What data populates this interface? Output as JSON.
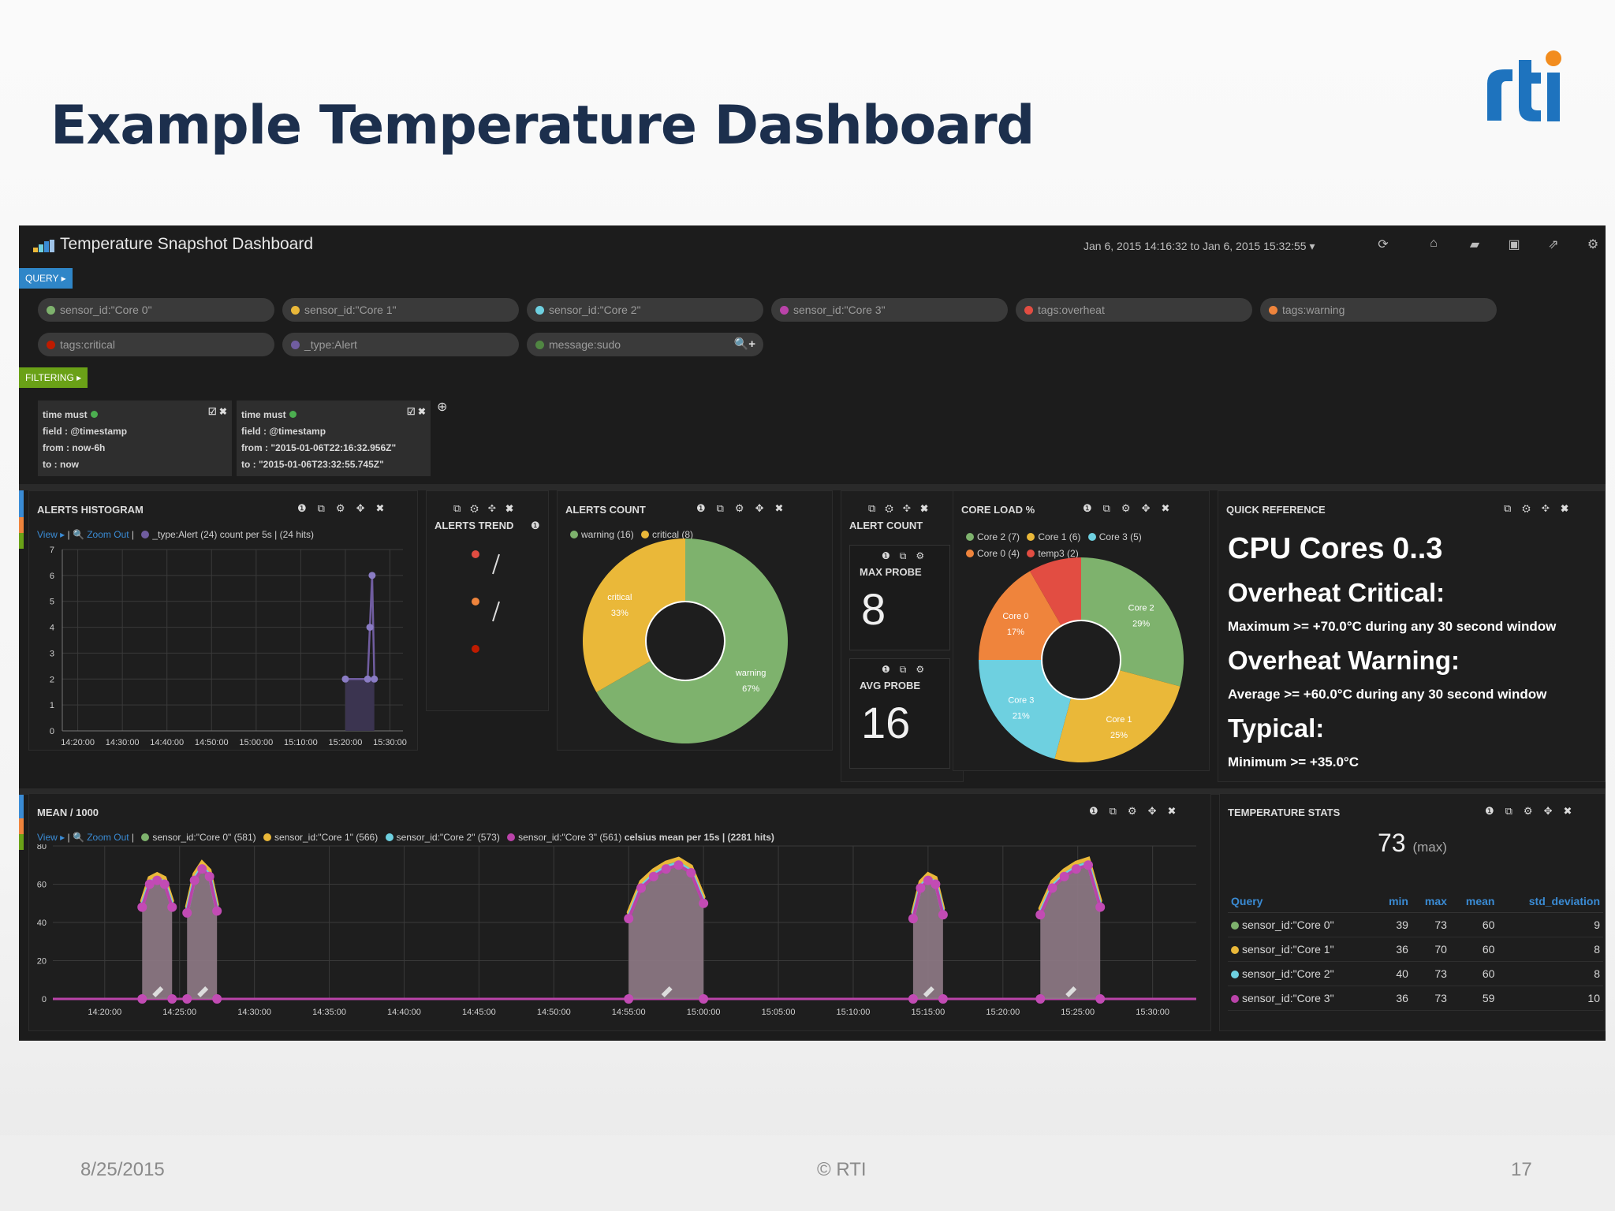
{
  "slide": {
    "title": "Example Temperature Dashboard",
    "footer_date": "8/25/2015",
    "footer_copyright": "© RTI",
    "footer_page": "17",
    "logo_text": "rti"
  },
  "dashboard": {
    "title": "Temperature Snapshot Dashboard",
    "time_range": "Jan 6, 2015 14:16:32 to Jan 6, 2015 15:32:55 ▾",
    "toolbar_icons": [
      "refresh-icon",
      "home-icon",
      "folder-icon",
      "save-icon",
      "share-icon",
      "gear-icon"
    ],
    "query_label": "QUERY ▸",
    "filtering_label": "FILTERING ▸",
    "queries": [
      {
        "label": "sensor_id:\"Core 0\"",
        "color": "#7eb26d"
      },
      {
        "label": "sensor_id:\"Core 1\"",
        "color": "#eab839"
      },
      {
        "label": "sensor_id:\"Core 2\"",
        "color": "#6ed0e0"
      },
      {
        "label": "sensor_id:\"Core 3\"",
        "color": "#ba43a9"
      },
      {
        "label": "tags:overheat",
        "color": "#e24d42"
      },
      {
        "label": "tags:warning",
        "color": "#ef843c"
      },
      {
        "label": "tags:critical",
        "color": "#bf1b00"
      },
      {
        "label": "_type:Alert",
        "color": "#705da0"
      },
      {
        "label": "message:sudo",
        "color": "#508642"
      }
    ],
    "query_add": "🔍+",
    "filters": [
      {
        "line1": "time must",
        "line2": "field : @timestamp",
        "line3": "from : now-6h",
        "line4": "to : now"
      },
      {
        "line1": "time must",
        "line2": "field : @timestamp",
        "line3": "from : \"2015-01-06T22:16:32.956Z\"",
        "line4": "to : \"2015-01-06T23:32:55.745Z\""
      }
    ]
  },
  "alerts_histogram": {
    "title": "ALERTS HISTOGRAM",
    "view": "View ▸",
    "zoom_out": "🔍 Zoom Out",
    "legend_series": "_type:Alert (24)",
    "legend_note": "count per 5s | (24 hits)"
  },
  "alerts_trend": {
    "title": "ALERTS TREND"
  },
  "alerts_count": {
    "title": "ALERTS COUNT",
    "legend": [
      {
        "label": "warning (16)",
        "color": "#7eb26d"
      },
      {
        "label": "critical (8)",
        "color": "#eab839"
      }
    ]
  },
  "alert_count": {
    "title": "ALERT COUNT",
    "max_label": "MAX PROBE",
    "max_value": "8",
    "avg_label": "AVG PROBE",
    "avg_value": "16"
  },
  "core_load": {
    "title": "CORE LOAD %",
    "legend": [
      {
        "label": "Core 2 (7)",
        "color": "#7eb26d"
      },
      {
        "label": "Core 1 (6)",
        "color": "#eab839"
      },
      {
        "label": "Core 3 (5)",
        "color": "#6ed0e0"
      },
      {
        "label": "Core 0 (4)",
        "color": "#ef843c"
      },
      {
        "label": "temp3 (2)",
        "color": "#e24d42"
      }
    ]
  },
  "quick_reference": {
    "title": "QUICK REFERENCE",
    "h1": "CPU Cores 0..3",
    "critical_heading": "Overheat Critical:",
    "critical_text": "Maximum >= +70.0°C during any 30 second window",
    "warning_heading": "Overheat Warning:",
    "warning_text": "Average >= +60.0°C during any 30 second window",
    "typical_heading": "Typical:",
    "typical_text": "Minimum >= +35.0°C"
  },
  "mean_panel": {
    "title": "MEAN / 1000",
    "view": "View ▸",
    "zoom_out": "🔍 Zoom Out",
    "legend": [
      {
        "label": "sensor_id:\"Core 0\" (581)",
        "color": "#7eb26d"
      },
      {
        "label": "sensor_id:\"Core 1\" (566)",
        "color": "#eab839"
      },
      {
        "label": "sensor_id:\"Core 2\" (573)",
        "color": "#6ed0e0"
      },
      {
        "label": "sensor_id:\"Core 3\" (561)",
        "color": "#ba43a9"
      }
    ],
    "legend_note": "celsius mean per 15s | (2281 hits)"
  },
  "temperature_stats": {
    "title": "TEMPERATURE STATS",
    "big_value": "73",
    "big_unit": "(max)",
    "columns": [
      "Query",
      "min",
      "max",
      "mean",
      "std_deviation"
    ],
    "rows": [
      {
        "query": "sensor_id:\"Core 0\"",
        "color": "#7eb26d",
        "min": "39",
        "max": "73",
        "mean": "60",
        "std": "9"
      },
      {
        "query": "sensor_id:\"Core 1\"",
        "color": "#eab839",
        "min": "36",
        "max": "70",
        "mean": "60",
        "std": "8"
      },
      {
        "query": "sensor_id:\"Core 2\"",
        "color": "#6ed0e0",
        "min": "40",
        "max": "73",
        "mean": "60",
        "std": "8"
      },
      {
        "query": "sensor_id:\"Core 3\"",
        "color": "#ba43a9",
        "min": "36",
        "max": "73",
        "mean": "59",
        "std": "10"
      }
    ]
  },
  "chart_data": [
    {
      "type": "line",
      "title": "ALERTS HISTOGRAM",
      "x": [
        "14:20:00",
        "14:30:00",
        "14:40:00",
        "14:50:00",
        "15:00:00",
        "15:10:00",
        "15:20:00",
        "15:30:00"
      ],
      "xlim": [
        "14:16:32",
        "15:32:55"
      ],
      "ylim": [
        0,
        7
      ],
      "yticks": [
        0,
        1,
        2,
        3,
        4,
        5,
        6,
        7
      ],
      "series": [
        {
          "name": "_type:Alert (24)",
          "color": "#705da0",
          "points": [
            [
              "15:20:00",
              2
            ],
            [
              "15:25:00",
              2
            ],
            [
              "15:25:30",
              4
            ],
            [
              "15:26:00",
              6
            ],
            [
              "15:26:30",
              2
            ]
          ]
        }
      ]
    },
    {
      "type": "pie",
      "title": "ALERTS COUNT",
      "slices": [
        {
          "label": "warning",
          "value": 16,
          "percent": "67%",
          "color": "#7eb26d"
        },
        {
          "label": "critical",
          "value": 8,
          "percent": "33%",
          "color": "#eab839"
        }
      ]
    },
    {
      "type": "pie",
      "title": "CORE LOAD %",
      "slices": [
        {
          "label": "Core 2",
          "value": 7,
          "percent": "29%",
          "color": "#7eb26d"
        },
        {
          "label": "Core 1",
          "value": 6,
          "percent": "25%",
          "color": "#eab839"
        },
        {
          "label": "Core 3",
          "value": 5,
          "percent": "21%",
          "color": "#6ed0e0"
        },
        {
          "label": "Core 0",
          "value": 4,
          "percent": "17%",
          "color": "#ef843c"
        },
        {
          "label": "temp3",
          "value": 2,
          "percent": "",
          "color": "#e24d42"
        }
      ]
    },
    {
      "type": "area",
      "title": "MEAN / 1000",
      "x": [
        "14:20:00",
        "14:25:00",
        "14:30:00",
        "14:35:00",
        "14:40:00",
        "14:45:00",
        "14:50:00",
        "14:55:00",
        "15:00:00",
        "15:05:00",
        "15:10:00",
        "15:15:00",
        "15:20:00",
        "15:25:00",
        "15:30:00"
      ],
      "ylim": [
        0,
        80
      ],
      "yticks": [
        0,
        20,
        40,
        60,
        80
      ],
      "bursts": [
        {
          "start": "14:22:30",
          "end": "14:24:30",
          "values": [
            48,
            60,
            62,
            60,
            48
          ]
        },
        {
          "start": "14:25:30",
          "end": "14:27:30",
          "values": [
            45,
            62,
            68,
            64,
            46
          ]
        },
        {
          "start": "14:55:00",
          "end": "15:00:00",
          "values": [
            42,
            58,
            64,
            68,
            70,
            66,
            50
          ]
        },
        {
          "start": "15:14:00",
          "end": "15:16:00",
          "values": [
            42,
            58,
            62,
            60,
            44
          ]
        },
        {
          "start": "15:22:30",
          "end": "15:26:30",
          "values": [
            44,
            58,
            64,
            68,
            70,
            48
          ]
        }
      ]
    }
  ]
}
